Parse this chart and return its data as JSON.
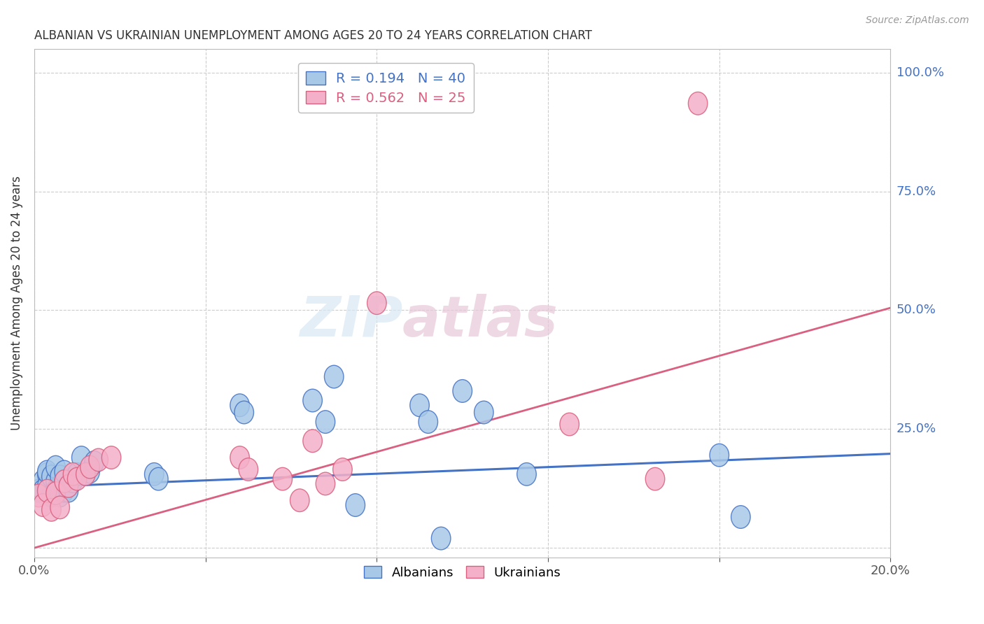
{
  "title": "ALBANIAN VS UKRAINIAN UNEMPLOYMENT AMONG AGES 20 TO 24 YEARS CORRELATION CHART",
  "source": "Source: ZipAtlas.com",
  "ylabel": "Unemployment Among Ages 20 to 24 years",
  "xlim": [
    0.0,
    0.2
  ],
  "ylim": [
    -0.02,
    1.05
  ],
  "xtick_positions": [
    0.0,
    0.04,
    0.08,
    0.12,
    0.16,
    0.2
  ],
  "xtick_labels": [
    "0.0%",
    "",
    "",
    "",
    "",
    "20.0%"
  ],
  "ytick_positions": [
    0.0,
    0.25,
    0.5,
    0.75,
    1.0
  ],
  "ytick_labels": [
    "",
    "25.0%",
    "50.0%",
    "75.0%",
    "100.0%"
  ],
  "albanian_R": 0.194,
  "albanian_N": 40,
  "ukrainian_R": 0.562,
  "ukrainian_N": 25,
  "albanian_color": "#a8c8e8",
  "ukrainian_color": "#f4b0c8",
  "albanian_line_color": "#4472c4",
  "ukrainian_line_color": "#d96080",
  "albanian_x": [
    0.001,
    0.002,
    0.002,
    0.003,
    0.003,
    0.003,
    0.004,
    0.004,
    0.005,
    0.005,
    0.005,
    0.006,
    0.006,
    0.006,
    0.007,
    0.007,
    0.007,
    0.008,
    0.008,
    0.009,
    0.01,
    0.011,
    0.013,
    0.014,
    0.028,
    0.029,
    0.048,
    0.049,
    0.065,
    0.068,
    0.07,
    0.075,
    0.09,
    0.092,
    0.095,
    0.1,
    0.105,
    0.115,
    0.16,
    0.165
  ],
  "albanian_y": [
    0.12,
    0.14,
    0.12,
    0.155,
    0.13,
    0.16,
    0.11,
    0.15,
    0.14,
    0.12,
    0.17,
    0.13,
    0.11,
    0.15,
    0.12,
    0.14,
    0.16,
    0.13,
    0.12,
    0.14,
    0.155,
    0.19,
    0.16,
    0.18,
    0.155,
    0.145,
    0.3,
    0.285,
    0.31,
    0.265,
    0.36,
    0.09,
    0.3,
    0.265,
    0.02,
    0.33,
    0.285,
    0.155,
    0.195,
    0.065
  ],
  "ukrainian_x": [
    0.001,
    0.002,
    0.003,
    0.004,
    0.005,
    0.006,
    0.007,
    0.008,
    0.009,
    0.01,
    0.012,
    0.013,
    0.015,
    0.018,
    0.048,
    0.05,
    0.058,
    0.062,
    0.065,
    0.068,
    0.072,
    0.08,
    0.125,
    0.145,
    0.155
  ],
  "ukrainian_y": [
    0.11,
    0.09,
    0.12,
    0.08,
    0.115,
    0.085,
    0.14,
    0.13,
    0.155,
    0.145,
    0.155,
    0.17,
    0.185,
    0.19,
    0.19,
    0.165,
    0.145,
    0.1,
    0.225,
    0.135,
    0.165,
    0.515,
    0.26,
    0.145,
    0.935
  ],
  "albanian_trend_x": [
    0.0,
    0.2
  ],
  "albanian_trend_y": [
    0.128,
    0.198
  ],
  "ukrainian_trend_x": [
    0.0,
    0.2
  ],
  "ukrainian_trend_y": [
    0.0,
    0.505
  ],
  "watermark_zip": "ZIP",
  "watermark_atlas": "atlas",
  "background_color": "#ffffff",
  "grid_color": "#cccccc"
}
